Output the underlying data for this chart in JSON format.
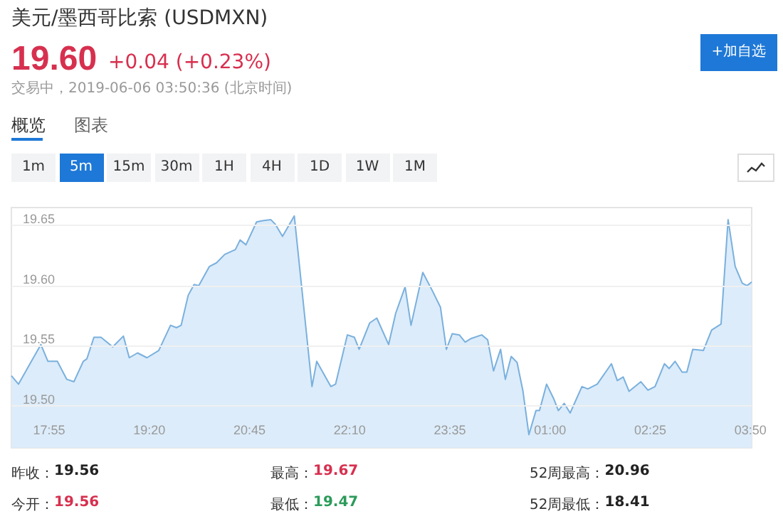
{
  "chart_data": {
    "type": "area",
    "title": "美元/墨西哥比索 (USDMXN)",
    "annotations": [
      "19.60",
      "+0.04 (+0.23%)",
      "交易中，2019-06-06 03:50:36 (北京时间)",
      "+加自选",
      "概览",
      "图表",
      "1m",
      "5m",
      "15m",
      "30m",
      "1H",
      "4H",
      "1D",
      "1W",
      "1M",
      "昨收：",
      "19.56",
      "最高：",
      "19.67",
      "52周最高：",
      "20.96",
      "今开：",
      "19.56",
      "最低：",
      "19.47",
      "52周最低：",
      "18.41"
    ],
    "x": [
      "2019-06-05T17:23",
      "2019-06-05T17:29",
      "2019-06-05T17:48",
      "2019-06-05T17:54",
      "2019-06-05T18:02",
      "2019-06-05T18:10",
      "2019-06-05T18:16",
      "2019-06-05T18:24",
      "2019-06-05T18:27",
      "2019-06-05T18:33",
      "2019-06-05T18:39",
      "2019-06-05T18:49",
      "2019-06-05T18:58",
      "2019-06-05T19:03",
      "2019-06-05T19:10",
      "2019-06-05T19:18",
      "2019-06-05T19:28",
      "2019-06-05T19:38",
      "2019-06-05T19:43",
      "2019-06-05T19:47",
      "2019-06-05T19:53",
      "2019-06-05T19:58",
      "2019-06-05T20:02",
      "2019-06-05T20:11",
      "2019-06-05T20:17",
      "2019-06-05T20:24",
      "2019-06-05T20:33",
      "2019-06-05T20:37",
      "2019-06-05T20:42",
      "2019-06-05T20:51",
      "2019-06-05T20:56",
      "2019-06-05T21:03",
      "2019-06-05T21:07",
      "2019-06-05T21:13",
      "2019-06-05T21:23",
      "2019-06-05T21:38",
      "2019-06-05T21:42",
      "2019-06-05T21:54",
      "2019-06-05T21:58",
      "2019-06-05T22:08",
      "2019-06-05T22:14",
      "2019-06-05T22:18",
      "2019-06-05T22:27",
      "2019-06-05T22:33",
      "2019-06-05T22:43",
      "2019-06-05T22:49",
      "2019-06-05T22:57",
      "2019-06-05T23:02",
      "2019-06-05T23:12",
      "2019-06-05T23:20",
      "2019-06-05T23:27",
      "2019-06-05T23:32",
      "2019-06-05T23:37",
      "2019-06-05T23:43",
      "2019-06-05T23:48",
      "2019-06-05T23:53",
      "2019-06-06T00:02",
      "2019-06-06T00:07",
      "2019-06-06T00:12",
      "2019-06-06T00:18",
      "2019-06-06T00:22",
      "2019-06-06T00:27",
      "2019-06-06T00:32",
      "2019-06-06T00:37",
      "2019-06-06T00:42",
      "2019-06-06T00:48",
      "2019-06-06T00:51",
      "2019-06-06T00:57",
      "2019-06-06T01:03",
      "2019-06-06T01:07",
      "2019-06-06T01:12",
      "2019-06-06T01:17",
      "2019-06-06T01:27",
      "2019-06-06T01:32",
      "2019-06-06T01:40",
      "2019-06-06T01:52",
      "2019-06-06T01:57",
      "2019-06-06T02:02",
      "2019-06-06T02:07",
      "2019-06-06T02:17",
      "2019-06-06T02:23",
      "2019-06-06T02:29",
      "2019-06-06T02:37",
      "2019-06-06T02:41",
      "2019-06-06T02:46",
      "2019-06-06T02:52",
      "2019-06-06T02:56",
      "2019-06-06T03:01",
      "2019-06-06T03:10",
      "2019-06-06T03:17",
      "2019-06-06T03:25",
      "2019-06-06T03:31",
      "2019-06-06T03:37",
      "2019-06-06T03:43",
      "2019-06-06T03:47",
      "2019-06-06T03:51"
    ],
    "series": [
      {
        "color": "#7ab0dd",
        "values": [
          19.525,
          19.518,
          19.551,
          19.537,
          19.537,
          19.522,
          19.52,
          19.537,
          19.539,
          19.557,
          19.557,
          19.549,
          19.558,
          19.54,
          19.544,
          19.54,
          19.546,
          19.567,
          19.565,
          19.567,
          19.592,
          19.601,
          19.6,
          19.616,
          19.619,
          19.626,
          19.63,
          19.638,
          19.634,
          19.653,
          19.654,
          19.655,
          19.651,
          19.641,
          19.658,
          19.516,
          19.537,
          19.516,
          19.518,
          19.559,
          19.557,
          19.547,
          19.569,
          19.573,
          19.551,
          19.577,
          19.599,
          19.567,
          19.611,
          19.596,
          19.582,
          19.547,
          19.56,
          19.559,
          19.553,
          19.556,
          19.559,
          19.555,
          19.529,
          19.547,
          19.522,
          19.541,
          19.536,
          19.512,
          19.476,
          19.496,
          19.496,
          19.518,
          19.506,
          19.496,
          19.502,
          19.494,
          19.516,
          19.514,
          19.518,
          19.535,
          19.521,
          19.524,
          19.512,
          19.52,
          19.513,
          19.516,
          19.535,
          19.531,
          19.537,
          19.528,
          19.528,
          19.547,
          19.546,
          19.563,
          19.568,
          19.655,
          19.616,
          19.602,
          19.6,
          19.603
        ]
      }
    ],
    "xlim": [
      "2019-06-05T17:23",
      "2019-06-06T03:51"
    ],
    "xticks": [
      {
        "value": "2019-06-05T17:55",
        "label": "17:55"
      },
      {
        "value": "2019-06-05T19:20",
        "label": "19:20"
      },
      {
        "value": "2019-06-05T20:45",
        "label": "20:45"
      },
      {
        "value": "2019-06-05T22:10",
        "label": "22:10"
      },
      {
        "value": "2019-06-05T23:35",
        "label": "23:35"
      },
      {
        "value": "2019-06-06T01:00",
        "label": "01:00"
      },
      {
        "value": "2019-06-06T02:25",
        "label": "02:25"
      },
      {
        "value": "2019-06-06T03:50",
        "label": "03:50"
      }
    ],
    "ylim": [
      19.465,
      19.665
    ],
    "yticks": [
      {
        "value": 19.5,
        "label": "19.50"
      },
      {
        "value": 19.55,
        "label": "19.55"
      },
      {
        "value": 19.6,
        "label": "19.60"
      },
      {
        "value": 19.65,
        "label": "19.65"
      }
    ],
    "grid": "y",
    "marker": "none",
    "line_style": "solid"
  }
}
